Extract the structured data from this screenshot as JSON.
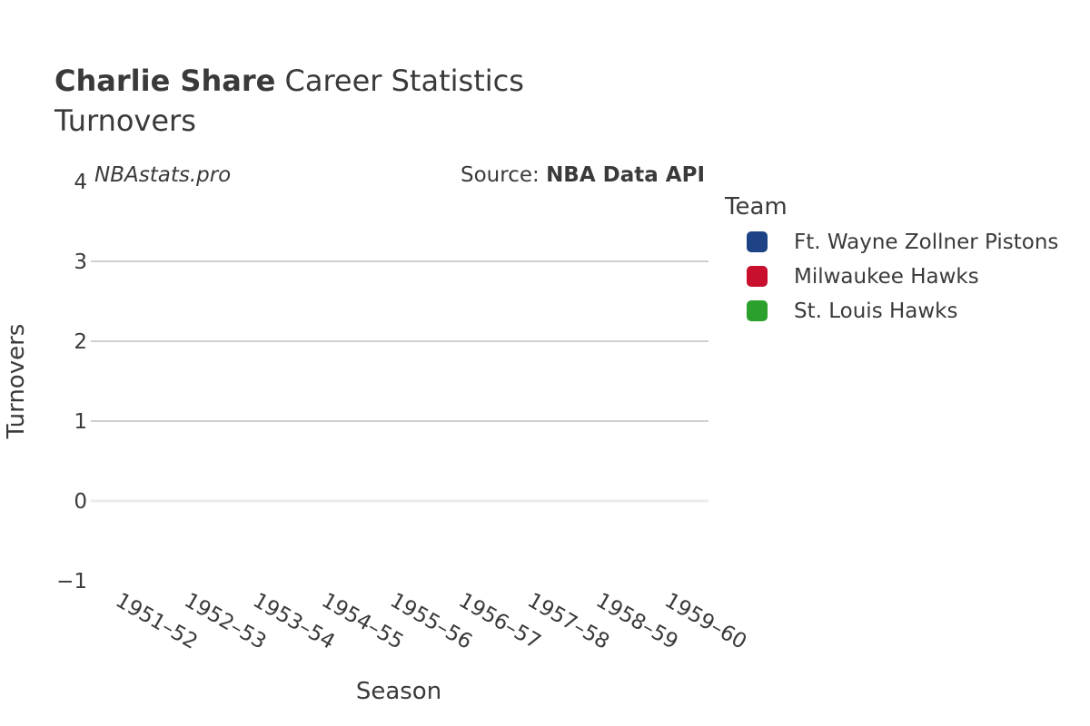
{
  "chart_data": {
    "type": "bar",
    "title_bold": "Charlie Share",
    "title_rest": " Career Statistics",
    "subtitle": "Turnovers",
    "watermark": "NBAstats.pro",
    "source_label": "Source: ",
    "source_name": "NBA Data API",
    "xlabel": "Season",
    "ylabel": "Turnovers",
    "categories": [
      "1951–52",
      "1952–53",
      "1953–54",
      "1954–55",
      "1955–56",
      "1956–57",
      "1957–58",
      "1958–59",
      "1959–60"
    ],
    "ylim": [
      -1,
      4
    ],
    "yticks": [
      -1,
      0,
      1,
      2,
      3,
      4
    ],
    "ytick_labels": [
      "−1",
      "0",
      "1",
      "2",
      "3",
      "4"
    ],
    "grid": true,
    "legend_title": "Team",
    "legend_position": "right",
    "series": [
      {
        "name": "Ft. Wayne Zollner Pistons",
        "color": "#1d4286",
        "values": [
          null,
          null,
          null,
          null,
          null,
          null,
          null,
          null,
          null
        ]
      },
      {
        "name": "Milwaukee Hawks",
        "color": "#c8102e",
        "values": [
          null,
          null,
          null,
          null,
          null,
          null,
          null,
          null,
          null
        ]
      },
      {
        "name": "St. Louis Hawks",
        "color": "#2ca02c",
        "values": [
          null,
          null,
          null,
          null,
          null,
          null,
          null,
          null,
          null
        ]
      }
    ]
  }
}
